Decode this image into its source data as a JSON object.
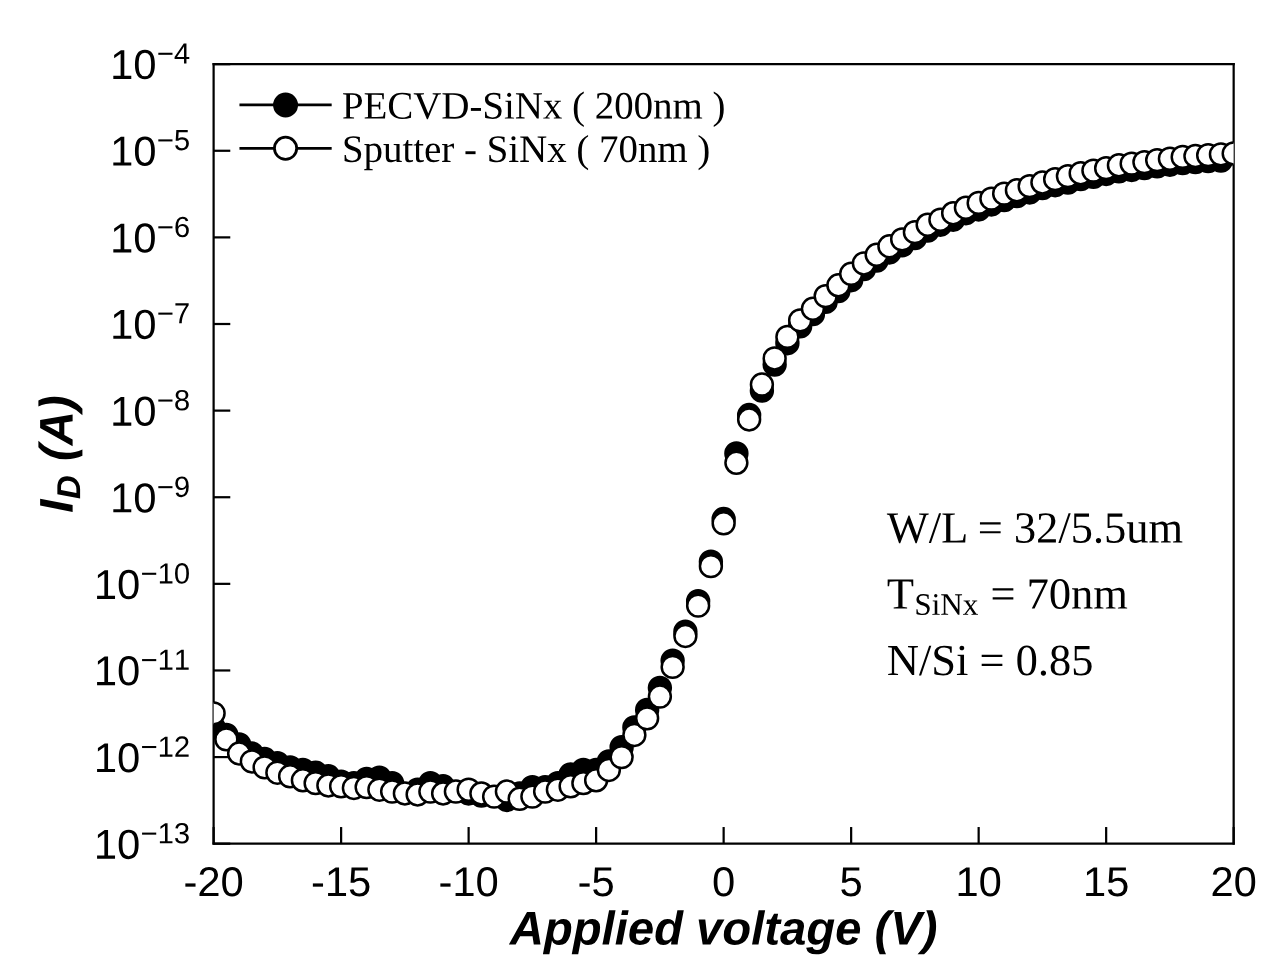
{
  "chart_data": {
    "type": "scatter",
    "xlabel": "Applied voltage (V)",
    "ylabel": "I$_{D}$ (A)",
    "x": [
      -20,
      -19.5,
      -19,
      -18.5,
      -18,
      -17.5,
      -17,
      -16.5,
      -16,
      -15.5,
      -15,
      -14.5,
      -14,
      -13.5,
      -13,
      -12.5,
      -12,
      -11.5,
      -11,
      -10.5,
      -10,
      -9.5,
      -9,
      -8.5,
      -8,
      -7.5,
      -7,
      -6.5,
      -6,
      -5.5,
      -5,
      -4.5,
      -4,
      -3.5,
      -3,
      -2.5,
      -2,
      -1.5,
      -1,
      -0.5,
      0,
      0.5,
      1,
      1.5,
      2,
      2.5,
      3,
      3.5,
      4,
      4.5,
      5,
      5.5,
      6,
      6.5,
      7,
      7.5,
      8,
      8.5,
      9,
      9.5,
      10,
      10.5,
      11,
      11.5,
      12,
      12.5,
      13,
      13.5,
      14,
      14.5,
      15,
      15.5,
      16,
      16.5,
      17,
      17.5,
      18,
      18.5,
      19,
      19.5,
      20
    ],
    "series": [
      {
        "name": "PECVD-SiNx ( 200nm )",
        "color": "#000000",
        "values": [
          2.2e-12,
          1.8e-12,
          1.4e-12,
          1.1e-12,
          9.5e-13,
          8.5e-13,
          7.6e-13,
          7.1e-13,
          6.6e-13,
          6e-13,
          5.2e-13,
          5e-13,
          5.6e-13,
          5.8e-13,
          5e-13,
          null,
          4.2e-13,
          5e-13,
          4.6e-13,
          null,
          3.8e-13,
          3.6e-13,
          null,
          3.2e-13,
          3.8e-13,
          4.5e-13,
          4.5e-13,
          5e-13,
          6.3e-13,
          7.1e-13,
          7.1e-13,
          8.9e-13,
          1.3e-12,
          2.2e-12,
          3.5e-12,
          6.3e-12,
          1.3e-11,
          2.8e-11,
          6.3e-11,
          1.8e-10,
          5.6e-10,
          3.2e-09,
          8.9e-09,
          1.7e-08,
          3.4e-08,
          6e-08,
          9.4e-08,
          1.3e-07,
          1.8e-07,
          2.4e-07,
          3.2e-07,
          4.3e-07,
          5.4e-07,
          6.7e-07,
          8.1e-07,
          9.8e-07,
          1.2e-06,
          1.4e-06,
          1.6e-06,
          1.9e-06,
          2.1e-06,
          2.4e-06,
          2.7e-06,
          3e-06,
          3.3e-06,
          3.7e-06,
          4e-06,
          4.3e-06,
          4.7e-06,
          5e-06,
          5.4e-06,
          5.8e-06,
          6e-06,
          6.3e-06,
          6.6e-06,
          6.9e-06,
          7.2e-06,
          7.4e-06,
          7.6e-06,
          7.7e-06,
          null
        ]
      },
      {
        "name": "Sputter - SiNx ( 70nm )",
        "color": "#ffffff",
        "values": [
          3.2e-12,
          1.6e-12,
          1.1e-12,
          8.9e-13,
          7.6e-13,
          6.6e-13,
          6e-13,
          5.4e-13,
          5e-13,
          4.7e-13,
          4.6e-13,
          4.4e-13,
          4.5e-13,
          4.2e-13,
          4e-13,
          3.8e-13,
          3.7e-13,
          4e-13,
          3.8e-13,
          4e-13,
          4.2e-13,
          3.8e-13,
          3.5e-13,
          4e-13,
          3.3e-13,
          3.5e-13,
          4e-13,
          4.2e-13,
          4.6e-13,
          5e-13,
          5.4e-13,
          7.1e-13,
          1e-12,
          1.8e-12,
          2.8e-12,
          5e-12,
          1.1e-11,
          2.5e-11,
          5.6e-11,
          1.6e-10,
          5e-10,
          2.5e-09,
          7.9e-09,
          2e-08,
          4e-08,
          7.1e-08,
          1.1e-07,
          1.5e-07,
          2.1e-07,
          2.8e-07,
          3.8e-07,
          5e-07,
          6.3e-07,
          7.9e-07,
          9.5e-07,
          1.15e-06,
          1.4e-06,
          1.6e-06,
          1.9e-06,
          2.2e-06,
          2.5e-06,
          2.8e-06,
          3.2e-06,
          3.5e-06,
          3.9e-06,
          4.3e-06,
          4.7e-06,
          5.1e-06,
          5.5e-06,
          5.9e-06,
          6.3e-06,
          6.8e-06,
          7.1e-06,
          7.4e-06,
          7.8e-06,
          8.1e-06,
          8.5e-06,
          8.7e-06,
          8.9e-06,
          9.1e-06,
          9.3e-06
        ]
      }
    ],
    "xlim": [
      -20,
      20
    ],
    "xticks": [
      -20,
      -15,
      -10,
      -5,
      0,
      5,
      10,
      15,
      20
    ],
    "log": "y",
    "ylim": [
      1e-13,
      0.0001
    ],
    "yticks": [
      {
        "value": 1e-13,
        "label": "10$^{−13}$"
      },
      {
        "value": 1e-12,
        "label": "10$^{−12}$"
      },
      {
        "value": 1e-11,
        "label": "10$^{−11}$"
      },
      {
        "value": 1e-10,
        "label": "10$^{−10}$"
      },
      {
        "value": 1e-09,
        "label": "10$^{−9}$"
      },
      {
        "value": 1e-08,
        "label": "10$^{−8}$"
      },
      {
        "value": 1e-07,
        "label": "10$^{−7}$"
      },
      {
        "value": 1e-06,
        "label": "10$^{−6}$"
      },
      {
        "value": 1e-05,
        "label": "10$^{−5}$"
      },
      {
        "value": 0.0001,
        "label": "10$^{−4}$"
      }
    ],
    "annotations": [
      "W/L = 32/5.5um",
      "T$_{SiNx}$ = 70nm",
      "N/Si = 0.85"
    ],
    "marker": "circle",
    "legend": "top left",
    "grid": false
  }
}
